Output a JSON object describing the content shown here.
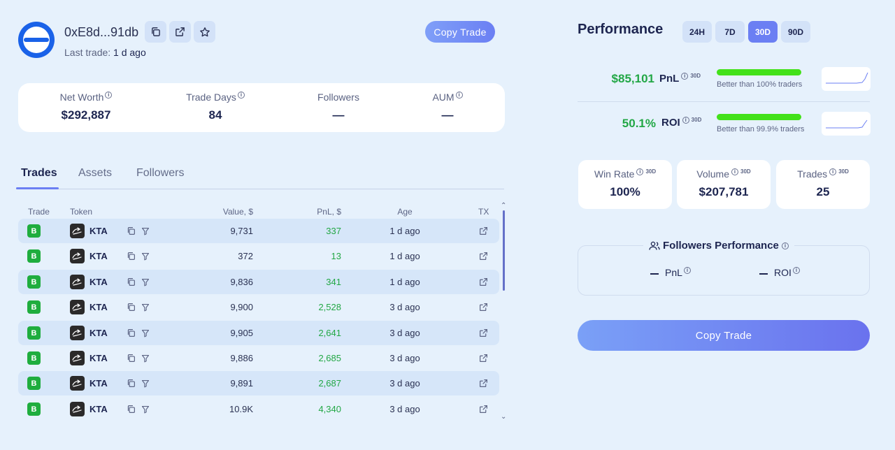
{
  "header": {
    "address": "0xE8d...91db",
    "last_trade_label": "Last trade:",
    "last_trade_value": "1 d ago",
    "copy_trade_label": "Copy Trade"
  },
  "stats": [
    {
      "label": "Net Worth",
      "value": "$292,887",
      "info": true
    },
    {
      "label": "Trade Days",
      "value": "84",
      "info": true
    },
    {
      "label": "Followers",
      "value": "—",
      "info": false
    },
    {
      "label": "AUM",
      "value": "—",
      "info": true
    }
  ],
  "tabs": [
    "Trades",
    "Assets",
    "Followers"
  ],
  "table": {
    "headers": {
      "trade": "Trade",
      "token": "Token",
      "value": "Value, $",
      "pnl": "PnL, $",
      "age": "Age",
      "tx": "TX"
    },
    "rows": [
      {
        "side": "B",
        "token": "KTA",
        "value": "9,731",
        "pnl": "337",
        "age": "1 d ago"
      },
      {
        "side": "B",
        "token": "KTA",
        "value": "372",
        "pnl": "13",
        "age": "1 d ago"
      },
      {
        "side": "B",
        "token": "KTA",
        "value": "9,836",
        "pnl": "341",
        "age": "1 d ago"
      },
      {
        "side": "B",
        "token": "KTA",
        "value": "9,900",
        "pnl": "2,528",
        "age": "3 d ago"
      },
      {
        "side": "B",
        "token": "KTA",
        "value": "9,905",
        "pnl": "2,641",
        "age": "3 d ago"
      },
      {
        "side": "B",
        "token": "KTA",
        "value": "9,886",
        "pnl": "2,685",
        "age": "3 d ago"
      },
      {
        "side": "B",
        "token": "KTA",
        "value": "9,891",
        "pnl": "2,687",
        "age": "3 d ago"
      },
      {
        "side": "B",
        "token": "KTA",
        "value": "10.9K",
        "pnl": "4,340",
        "age": "3 d ago"
      }
    ]
  },
  "performance": {
    "title": "Performance",
    "periods": [
      "24H",
      "7D",
      "30D",
      "90D"
    ],
    "active_period": "30D",
    "pnl": {
      "value": "$85,101",
      "label": "PnL",
      "period": "30D",
      "better": "Better than 100% traders",
      "bar_fraction": 1.0
    },
    "roi": {
      "value": "50.1%",
      "label": "ROI",
      "period": "30D",
      "better": "Better than 99.9% traders",
      "bar_fraction": 0.999
    },
    "cards": [
      {
        "label": "Win Rate",
        "period": "30D",
        "value": "100%"
      },
      {
        "label": "Volume",
        "period": "30D",
        "value": "$207,781"
      },
      {
        "label": "Trades",
        "period": "30D",
        "value": "25"
      }
    ],
    "followers_performance": {
      "title": "Followers Performance",
      "pnl_label": "PnL",
      "roi_label": "ROI"
    },
    "copy_trade_label": "Copy Trade"
  },
  "colors": {
    "accent": "#6b7ff3",
    "positive": "#22a745",
    "buy_badge": "#1fad3e",
    "bar": "#43e11a"
  }
}
